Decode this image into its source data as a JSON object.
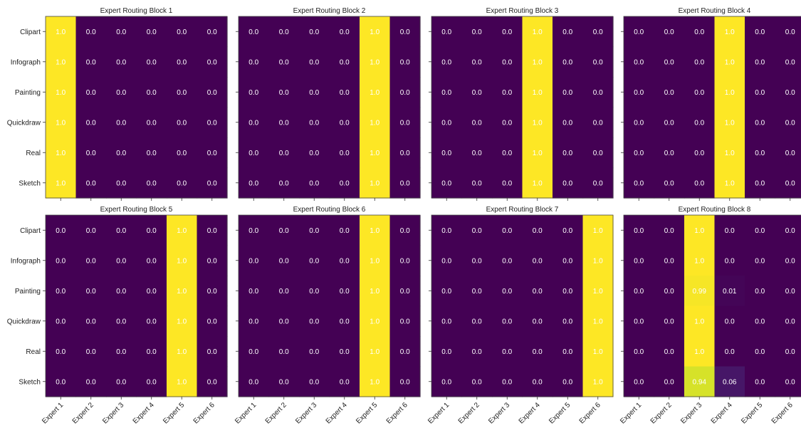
{
  "chart_data": {
    "type": "heatmap",
    "colormap": "viridis",
    "vmin": 0,
    "vmax": 1,
    "rows": [
      "Clipart",
      "Infograph",
      "Painting",
      "Quickdraw",
      "Real",
      "Sketch"
    ],
    "columns": [
      "Expert 1",
      "Expert 2",
      "Expert 3",
      "Expert 4",
      "Expert 5",
      "Expert 6"
    ],
    "panels": [
      {
        "title": "Expert Routing Block 1",
        "values": [
          [
            1.0,
            0.0,
            0.0,
            0.0,
            0.0,
            0.0
          ],
          [
            1.0,
            0.0,
            0.0,
            0.0,
            0.0,
            0.0
          ],
          [
            1.0,
            0.0,
            0.0,
            0.0,
            0.0,
            0.0
          ],
          [
            1.0,
            0.0,
            0.0,
            0.0,
            0.0,
            0.0
          ],
          [
            1.0,
            0.0,
            0.0,
            0.0,
            0.0,
            0.0
          ],
          [
            1.0,
            0.0,
            0.0,
            0.0,
            0.0,
            0.0
          ]
        ],
        "labels": [
          [
            "1.0",
            "0.0",
            "0.0",
            "0.0",
            "0.0",
            "0.0"
          ],
          [
            "1.0",
            "0.0",
            "0.0",
            "0.0",
            "0.0",
            "0.0"
          ],
          [
            "1.0",
            "0.0",
            "0.0",
            "0.0",
            "0.0",
            "0.0"
          ],
          [
            "1.0",
            "0.0",
            "0.0",
            "0.0",
            "0.0",
            "0.0"
          ],
          [
            "1.0",
            "0.0",
            "0.0",
            "0.0",
            "0.0",
            "0.0"
          ],
          [
            "1.0",
            "0.0",
            "0.0",
            "0.0",
            "0.0",
            "0.0"
          ]
        ]
      },
      {
        "title": "Expert Routing Block 2",
        "values": [
          [
            0.0,
            0.0,
            0.0,
            0.0,
            1.0,
            0.0
          ],
          [
            0.0,
            0.0,
            0.0,
            0.0,
            1.0,
            0.0
          ],
          [
            0.0,
            0.0,
            0.0,
            0.0,
            1.0,
            0.0
          ],
          [
            0.0,
            0.0,
            0.0,
            0.0,
            1.0,
            0.0
          ],
          [
            0.0,
            0.0,
            0.0,
            0.0,
            1.0,
            0.0
          ],
          [
            0.0,
            0.0,
            0.0,
            0.0,
            1.0,
            0.0
          ]
        ],
        "labels": [
          [
            "0.0",
            "0.0",
            "0.0",
            "0.0",
            "1.0",
            "0.0"
          ],
          [
            "0.0",
            "0.0",
            "0.0",
            "0.0",
            "1.0",
            "0.0"
          ],
          [
            "0.0",
            "0.0",
            "0.0",
            "0.0",
            "1.0",
            "0.0"
          ],
          [
            "0.0",
            "0.0",
            "0.0",
            "0.0",
            "1.0",
            "0.0"
          ],
          [
            "0.0",
            "0.0",
            "0.0",
            "0.0",
            "1.0",
            "0.0"
          ],
          [
            "0.0",
            "0.0",
            "0.0",
            "0.0",
            "1.0",
            "0.0"
          ]
        ]
      },
      {
        "title": "Expert Routing Block 3",
        "values": [
          [
            0.0,
            0.0,
            0.0,
            1.0,
            0.0,
            0.0
          ],
          [
            0.0,
            0.0,
            0.0,
            1.0,
            0.0,
            0.0
          ],
          [
            0.0,
            0.0,
            0.0,
            1.0,
            0.0,
            0.0
          ],
          [
            0.0,
            0.0,
            0.0,
            1.0,
            0.0,
            0.0
          ],
          [
            0.0,
            0.0,
            0.0,
            1.0,
            0.0,
            0.0
          ],
          [
            0.0,
            0.0,
            0.0,
            1.0,
            0.0,
            0.0
          ]
        ],
        "labels": [
          [
            "0.0",
            "0.0",
            "0.0",
            "1.0",
            "0.0",
            "0.0"
          ],
          [
            "0.0",
            "0.0",
            "0.0",
            "1.0",
            "0.0",
            "0.0"
          ],
          [
            "0.0",
            "0.0",
            "0.0",
            "1.0",
            "0.0",
            "0.0"
          ],
          [
            "0.0",
            "0.0",
            "0.0",
            "1.0",
            "0.0",
            "0.0"
          ],
          [
            "0.0",
            "0.0",
            "0.0",
            "1.0",
            "0.0",
            "0.0"
          ],
          [
            "0.0",
            "0.0",
            "0.0",
            "1.0",
            "0.0",
            "0.0"
          ]
        ]
      },
      {
        "title": "Expert Routing Block 4",
        "values": [
          [
            0.0,
            0.0,
            0.0,
            1.0,
            0.0,
            0.0
          ],
          [
            0.0,
            0.0,
            0.0,
            1.0,
            0.0,
            0.0
          ],
          [
            0.0,
            0.0,
            0.0,
            1.0,
            0.0,
            0.0
          ],
          [
            0.0,
            0.0,
            0.0,
            1.0,
            0.0,
            0.0
          ],
          [
            0.0,
            0.0,
            0.0,
            1.0,
            0.0,
            0.0
          ],
          [
            0.0,
            0.0,
            0.0,
            1.0,
            0.0,
            0.0
          ]
        ],
        "labels": [
          [
            "0.0",
            "0.0",
            "0.0",
            "1.0",
            "0.0",
            "0.0"
          ],
          [
            "0.0",
            "0.0",
            "0.0",
            "1.0",
            "0.0",
            "0.0"
          ],
          [
            "0.0",
            "0.0",
            "0.0",
            "1.0",
            "0.0",
            "0.0"
          ],
          [
            "0.0",
            "0.0",
            "0.0",
            "1.0",
            "0.0",
            "0.0"
          ],
          [
            "0.0",
            "0.0",
            "0.0",
            "1.0",
            "0.0",
            "0.0"
          ],
          [
            "0.0",
            "0.0",
            "0.0",
            "1.0",
            "0.0",
            "0.0"
          ]
        ]
      },
      {
        "title": "Expert Routing Block 5",
        "values": [
          [
            0.0,
            0.0,
            0.0,
            0.0,
            1.0,
            0.0
          ],
          [
            0.0,
            0.0,
            0.0,
            0.0,
            1.0,
            0.0
          ],
          [
            0.0,
            0.0,
            0.0,
            0.0,
            1.0,
            0.0
          ],
          [
            0.0,
            0.0,
            0.0,
            0.0,
            1.0,
            0.0
          ],
          [
            0.0,
            0.0,
            0.0,
            0.0,
            1.0,
            0.0
          ],
          [
            0.0,
            0.0,
            0.0,
            0.0,
            1.0,
            0.0
          ]
        ],
        "labels": [
          [
            "0.0",
            "0.0",
            "0.0",
            "0.0",
            "1.0",
            "0.0"
          ],
          [
            "0.0",
            "0.0",
            "0.0",
            "0.0",
            "1.0",
            "0.0"
          ],
          [
            "0.0",
            "0.0",
            "0.0",
            "0.0",
            "1.0",
            "0.0"
          ],
          [
            "0.0",
            "0.0",
            "0.0",
            "0.0",
            "1.0",
            "0.0"
          ],
          [
            "0.0",
            "0.0",
            "0.0",
            "0.0",
            "1.0",
            "0.0"
          ],
          [
            "0.0",
            "0.0",
            "0.0",
            "0.0",
            "1.0",
            "0.0"
          ]
        ]
      },
      {
        "title": "Expert Routing Block 6",
        "values": [
          [
            0.0,
            0.0,
            0.0,
            0.0,
            1.0,
            0.0
          ],
          [
            0.0,
            0.0,
            0.0,
            0.0,
            1.0,
            0.0
          ],
          [
            0.0,
            0.0,
            0.0,
            0.0,
            1.0,
            0.0
          ],
          [
            0.0,
            0.0,
            0.0,
            0.0,
            1.0,
            0.0
          ],
          [
            0.0,
            0.0,
            0.0,
            0.0,
            1.0,
            0.0
          ],
          [
            0.0,
            0.0,
            0.0,
            0.0,
            1.0,
            0.0
          ]
        ],
        "labels": [
          [
            "0.0",
            "0.0",
            "0.0",
            "0.0",
            "1.0",
            "0.0"
          ],
          [
            "0.0",
            "0.0",
            "0.0",
            "0.0",
            "1.0",
            "0.0"
          ],
          [
            "0.0",
            "0.0",
            "0.0",
            "0.0",
            "1.0",
            "0.0"
          ],
          [
            "0.0",
            "0.0",
            "0.0",
            "0.0",
            "1.0",
            "0.0"
          ],
          [
            "0.0",
            "0.0",
            "0.0",
            "0.0",
            "1.0",
            "0.0"
          ],
          [
            "0.0",
            "0.0",
            "0.0",
            "0.0",
            "1.0",
            "0.0"
          ]
        ]
      },
      {
        "title": "Expert Routing Block 7",
        "values": [
          [
            0.0,
            0.0,
            0.0,
            0.0,
            0.0,
            1.0
          ],
          [
            0.0,
            0.0,
            0.0,
            0.0,
            0.0,
            1.0
          ],
          [
            0.0,
            0.0,
            0.0,
            0.0,
            0.0,
            1.0
          ],
          [
            0.0,
            0.0,
            0.0,
            0.0,
            0.0,
            1.0
          ],
          [
            0.0,
            0.0,
            0.0,
            0.0,
            0.0,
            1.0
          ],
          [
            0.0,
            0.0,
            0.0,
            0.0,
            0.0,
            1.0
          ]
        ],
        "labels": [
          [
            "0.0",
            "0.0",
            "0.0",
            "0.0",
            "0.0",
            "1.0"
          ],
          [
            "0.0",
            "0.0",
            "0.0",
            "0.0",
            "0.0",
            "1.0"
          ],
          [
            "0.0",
            "0.0",
            "0.0",
            "0.0",
            "0.0",
            "1.0"
          ],
          [
            "0.0",
            "0.0",
            "0.0",
            "0.0",
            "0.0",
            "1.0"
          ],
          [
            "0.0",
            "0.0",
            "0.0",
            "0.0",
            "0.0",
            "1.0"
          ],
          [
            "0.0",
            "0.0",
            "0.0",
            "0.0",
            "0.0",
            "1.0"
          ]
        ]
      },
      {
        "title": "Expert Routing Block 8",
        "values": [
          [
            0.0,
            0.0,
            1.0,
            0.0,
            0.0,
            0.0
          ],
          [
            0.0,
            0.0,
            1.0,
            0.0,
            0.0,
            0.0
          ],
          [
            0.0,
            0.0,
            0.99,
            0.01,
            0.0,
            0.0
          ],
          [
            0.0,
            0.0,
            1.0,
            0.0,
            0.0,
            0.0
          ],
          [
            0.0,
            0.0,
            1.0,
            0.0,
            0.0,
            0.0
          ],
          [
            0.0,
            0.0,
            0.94,
            0.06,
            0.0,
            0.0
          ]
        ],
        "labels": [
          [
            "0.0",
            "0.0",
            "1.0",
            "0.0",
            "0.0",
            "0.0"
          ],
          [
            "0.0",
            "0.0",
            "1.0",
            "0.0",
            "0.0",
            "0.0"
          ],
          [
            "0.0",
            "0.0",
            "0.99",
            "0.01",
            "0.0",
            "0.0"
          ],
          [
            "0.0",
            "0.0",
            "1.0",
            "0.0",
            "0.0",
            "0.0"
          ],
          [
            "0.0",
            "0.0",
            "1.0",
            "0.0",
            "0.0",
            "0.0"
          ],
          [
            "0.0",
            "0.0",
            "0.94",
            "0.06",
            "0.0",
            "0.0"
          ]
        ]
      }
    ]
  },
  "colors": {
    "low": "#440154",
    "high": "#fde725",
    "cell_text": "#ffffff",
    "axis_text": "#222222"
  }
}
